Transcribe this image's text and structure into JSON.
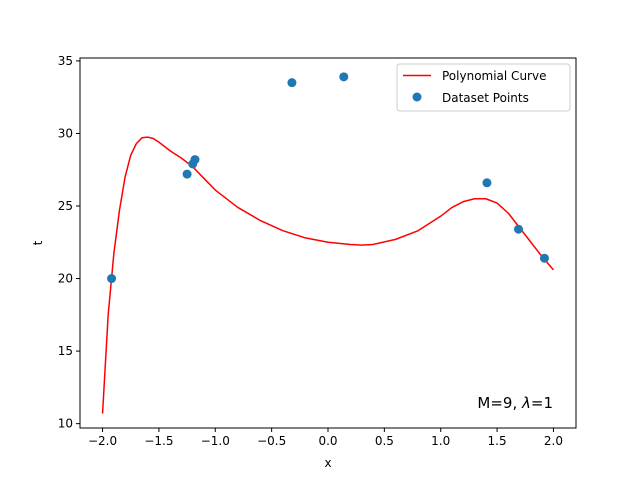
{
  "chart_data": {
    "type": "line",
    "xlabel": "x",
    "ylabel": "t",
    "xlim": [
      -2.2,
      2.2
    ],
    "ylim": [
      9.7,
      35.2
    ],
    "xticks": [
      "−2.0",
      "−1.5",
      "−1.0",
      "−0.5",
      "0.0",
      "0.5",
      "1.0",
      "1.5",
      "2.0"
    ],
    "xtick_values": [
      -2.0,
      -1.5,
      -1.0,
      -0.5,
      0.0,
      0.5,
      1.0,
      1.5,
      2.0
    ],
    "yticks": [
      "10",
      "15",
      "20",
      "25",
      "30",
      "35"
    ],
    "ytick_values": [
      10,
      15,
      20,
      25,
      30,
      35
    ],
    "grid": false,
    "legend_position": "top-right",
    "annotation_prefix": "M=9, ",
    "annotation_lambda": "λ",
    "annotation_suffix": "=1",
    "series": [
      {
        "name": "Polynomial Curve",
        "kind": "line",
        "color": "#ff0000",
        "x": [
          -2.0,
          -1.95,
          -1.9,
          -1.85,
          -1.8,
          -1.75,
          -1.7,
          -1.65,
          -1.6,
          -1.55,
          -1.5,
          -1.45,
          -1.4,
          -1.3,
          -1.2,
          -1.1,
          -1.0,
          -0.8,
          -0.6,
          -0.4,
          -0.2,
          0.0,
          0.2,
          0.3,
          0.4,
          0.6,
          0.8,
          1.0,
          1.1,
          1.2,
          1.3,
          1.4,
          1.5,
          1.6,
          1.7,
          1.8,
          1.9,
          2.0
        ],
        "y": [
          10.7,
          17.5,
          21.7,
          24.7,
          27.0,
          28.5,
          29.3,
          29.7,
          29.75,
          29.65,
          29.4,
          29.1,
          28.8,
          28.3,
          27.7,
          26.9,
          26.1,
          24.9,
          24.0,
          23.3,
          22.8,
          22.5,
          22.35,
          22.3,
          22.35,
          22.7,
          23.3,
          24.3,
          24.9,
          25.3,
          25.5,
          25.5,
          25.2,
          24.5,
          23.5,
          22.5,
          21.5,
          20.6
        ]
      },
      {
        "name": "Dataset Points",
        "kind": "scatter",
        "color": "#1f77b4",
        "x": [
          -1.92,
          -1.25,
          -1.2,
          -1.18,
          -0.32,
          0.14,
          1.41,
          1.69,
          1.92
        ],
        "y": [
          20.0,
          27.2,
          27.9,
          28.2,
          33.5,
          33.9,
          26.6,
          23.4,
          21.4
        ]
      }
    ]
  }
}
